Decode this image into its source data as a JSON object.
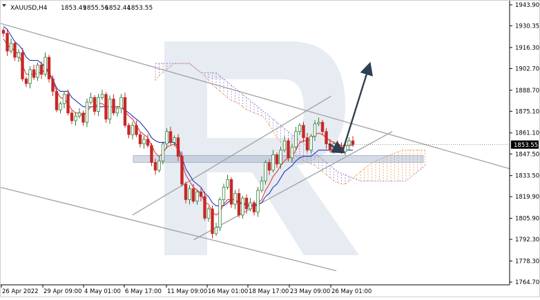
{
  "header": {
    "symbol": "XAUUSD,H4",
    "open": "1853.49",
    "high": "1855.56",
    "low": "1852.44",
    "close": "1853.55"
  },
  "chart_data": {
    "type": "candlestick",
    "symbol": "XAUUSD",
    "timeframe": "H4",
    "ylim": [
      1764.7,
      1943.9
    ],
    "y_ticks": [
      "1943.90",
      "1930.35",
      "1916.30",
      "1902.70",
      "1888.70",
      "1875.10",
      "1861.10",
      "1847.50",
      "1833.50",
      "1819.90",
      "1805.90",
      "1792.30",
      "1778.30",
      "1764.70"
    ],
    "x_ticks": [
      "26 Apr 2022",
      "29 Apr 09:00",
      "4 May 01:00",
      "6 May 17:00",
      "11 May 09:00",
      "16 May 01:00",
      "18 May 17:00",
      "23 May 09:00",
      "26 May 01:00"
    ],
    "current_price": "1853.55",
    "close_series": [
      1925.5,
      1914,
      1919,
      1910,
      1913,
      1896,
      1893,
      1902,
      1897,
      1905,
      1899,
      1910,
      1896,
      1888,
      1876,
      1880,
      1886,
      1874,
      1869,
      1872,
      1874,
      1868,
      1881,
      1884,
      1875,
      1884,
      1886,
      1870,
      1883,
      1874,
      1877,
      1884,
      1866,
      1860,
      1866,
      1860,
      1854,
      1857,
      1853,
      1842,
      1837,
      1843,
      1854,
      1862,
      1855,
      1858,
      1846,
      1828,
      1818,
      1825,
      1817,
      1823,
      1820,
      1806,
      1812,
      1796,
      1800,
      1818,
      1826,
      1831,
      1815,
      1822,
      1808,
      1819,
      1812,
      1816,
      1810,
      1824,
      1830,
      1842,
      1837,
      1847,
      1841,
      1850,
      1856,
      1845,
      1852,
      1862,
      1866,
      1858,
      1850,
      1859,
      1867,
      1868,
      1862,
      1854,
      1850,
      1854,
      1852,
      1849,
      1853,
      1856,
      1853.55
    ],
    "tenkan": [
      1922,
      1918,
      1916,
      1914,
      1912,
      1905,
      1899,
      1899,
      1899,
      1900,
      1900,
      1902,
      1900,
      1895,
      1888,
      1884,
      1883,
      1880,
      1876,
      1874,
      1874,
      1872,
      1875,
      1878,
      1878,
      1880,
      1880,
      1878,
      1878,
      1878,
      1878,
      1878,
      1875,
      1872,
      1870,
      1866,
      1862,
      1860,
      1858,
      1853,
      1848,
      1846,
      1848,
      1852,
      1853,
      1854,
      1850,
      1842,
      1834,
      1830,
      1826,
      1824,
      1822,
      1816,
      1815,
      1810,
      1808,
      1810,
      1815,
      1818,
      1818,
      1818,
      1815,
      1816,
      1815,
      1815,
      1814,
      1816,
      1818,
      1824,
      1828,
      1833,
      1836,
      1840,
      1843,
      1845,
      1846,
      1850,
      1855,
      1856,
      1856,
      1857,
      1860,
      1861,
      1860,
      1858,
      1856,
      1855,
      1854,
      1853,
      1853,
      1853,
      1853
    ],
    "kijun": [
      1930,
      1928,
      1924,
      1920,
      1918,
      1915,
      1910,
      1908,
      1908,
      1908,
      1906,
      1904,
      1900,
      1896,
      1890,
      1888,
      1888,
      1888,
      1884,
      1882,
      1880,
      1878,
      1878,
      1878,
      1878,
      1878,
      1878,
      1878,
      1878,
      1878,
      1878,
      1878,
      1876,
      1874,
      1872,
      1870,
      1868,
      1865,
      1862,
      1858,
      1856,
      1855,
      1855,
      1855,
      1855,
      1855,
      1852,
      1845,
      1838,
      1834,
      1830,
      1828,
      1826,
      1822,
      1820,
      1816,
      1814,
      1814,
      1814,
      1816,
      1818,
      1818,
      1816,
      1816,
      1814,
      1814,
      1814,
      1815,
      1816,
      1820,
      1822,
      1826,
      1828,
      1832,
      1836,
      1838,
      1840,
      1843,
      1845,
      1846,
      1846,
      1846,
      1848,
      1850,
      1850,
      1850,
      1850,
      1850,
      1850,
      1850,
      1850,
      1850,
      1850
    ],
    "cloud_span_a": [
      1895,
      1898,
      1900,
      1902,
      1904,
      1906,
      1906,
      1906,
      1906,
      1906,
      1904,
      1902,
      1900,
      1898,
      1895,
      1892,
      1890,
      1888,
      1886,
      1884,
      1882,
      1881,
      1880,
      1878,
      1876,
      1875,
      1874,
      1873,
      1872,
      1870,
      1866,
      1862,
      1858,
      1855,
      1852,
      1850,
      1848,
      1846,
      1845,
      1843,
      1842,
      1841,
      1840,
      1838,
      1836,
      1834,
      1832,
      1830,
      1829,
      1828,
      1828,
      1830,
      1832,
      1834,
      1836,
      1838,
      1840,
      1842,
      1843,
      1844,
      1845,
      1846,
      1847,
      1848,
      1849,
      1850,
      1850,
      1850,
      1850,
      1850,
      1850,
      1850
    ],
    "cloud_span_b": [
      1906,
      1906,
      1906,
      1906,
      1906,
      1906,
      1906,
      1906,
      1906,
      1906,
      1904,
      1902,
      1900,
      1900,
      1900,
      1900,
      1900,
      1898,
      1896,
      1894,
      1892,
      1890,
      1888,
      1886,
      1884,
      1882,
      1880,
      1878,
      1876,
      1874,
      1872,
      1870,
      1868,
      1866,
      1864,
      1862,
      1860,
      1858,
      1856,
      1854,
      1852,
      1850,
      1848,
      1846,
      1844,
      1842,
      1840,
      1838,
      1836,
      1835,
      1834,
      1833,
      1832,
      1831,
      1830,
      1830,
      1830,
      1830,
      1830,
      1830,
      1830,
      1830,
      1830,
      1830,
      1830,
      1830,
      1830,
      1832,
      1834,
      1836,
      1838,
      1840
    ],
    "support_zone": [
      1842,
      1846.5
    ],
    "channels": [
      {
        "name": "",
        "from": {
          "x": 0,
          "y": 1932
        },
        "to": {
          "x": 1,
          "y": 1838
        }
      },
      {
        "name": "",
        "from": {
          "x": 0,
          "y": 1826
        },
        "to": {
          "x": 0.66,
          "y": 1772
        }
      },
      {
        "name": "",
        "from": {
          "x": 0.26,
          "y": 1808
        },
        "to": {
          "x": 0.65,
          "y": 1885
        }
      },
      {
        "name": "",
        "from": {
          "x": 0.38,
          "y": 1792
        },
        "to": {
          "x": 0.77,
          "y": 1862
        }
      }
    ],
    "forecast": [
      {
        "from": {
          "x": 0.645,
          "y": 1854
        },
        "to": {
          "x": 0.672,
          "y": 1849
        }
      },
      {
        "from": {
          "x": 0.672,
          "y": 1849
        },
        "to": {
          "x": 0.725,
          "y": 1905
        }
      }
    ],
    "colors": {
      "bull": "#2e7d32",
      "bear": "#c62828",
      "tenkan": "#e53935",
      "kijun": "#2233bb",
      "span_a": "#f0a060",
      "span_b": "#a080c8",
      "zone": "#9fb0c8",
      "channel": "#a0a0a0",
      "arrow": "#2f3f52",
      "watermark": "#c9d3e3"
    }
  }
}
